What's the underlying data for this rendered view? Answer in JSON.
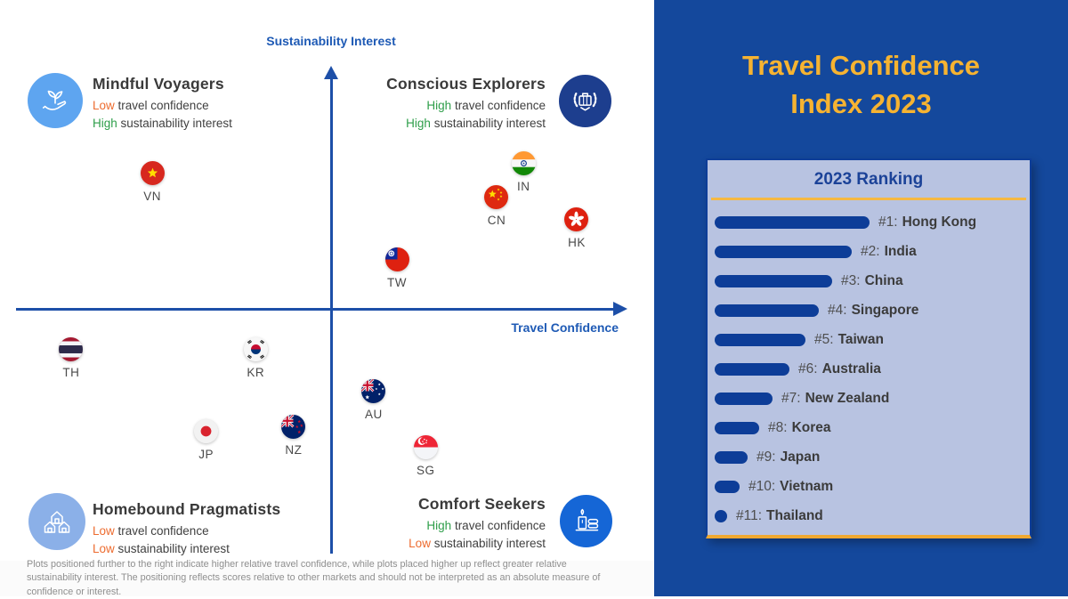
{
  "title": {
    "line1": "Travel Confidence",
    "line2": "Index 2023",
    "color": "#F6B331"
  },
  "chart": {
    "y_axis_label": "Sustainability Interest",
    "x_axis_label": "Travel Confidence",
    "axis_color": "#1D4FA8",
    "level_colors": {
      "low": "#ED6C30",
      "high": "#2E9E4A"
    },
    "quadrants": [
      {
        "id": "mindful-voyagers",
        "position": "top-left",
        "icon": "hand-plant-icon",
        "title": "Mindful Voyagers",
        "lines": [
          {
            "prefix": "Low",
            "rest": " travel confidence",
            "level": "low"
          },
          {
            "prefix": "High",
            "rest": " sustainability interest",
            "level": "high"
          }
        ]
      },
      {
        "id": "conscious-explorers",
        "position": "top-right",
        "icon": "badge-suitcase-icon",
        "title": "Conscious Explorers",
        "lines": [
          {
            "prefix": "High",
            "rest": " travel confidence",
            "level": "high"
          },
          {
            "prefix": "High",
            "rest": " sustainability interest",
            "level": "high"
          }
        ]
      },
      {
        "id": "homebound-pragmatists",
        "position": "bottom-left",
        "icon": "houses-icon",
        "title": "Homebound Pragmatists",
        "lines": [
          {
            "prefix": "Low",
            "rest": " travel confidence",
            "level": "low"
          },
          {
            "prefix": "Low",
            "rest": " sustainability interest",
            "level": "low"
          }
        ]
      },
      {
        "id": "comfort-seekers",
        "position": "bottom-right",
        "icon": "candle-spa-icon",
        "title": "Comfort Seekers",
        "lines": [
          {
            "prefix": "High",
            "rest": " travel confidence",
            "level": "high"
          },
          {
            "prefix": "Low",
            "rest": " sustainability interest",
            "level": "low"
          }
        ]
      }
    ]
  },
  "chart_data": {
    "type": "scatter",
    "title": "Travel Confidence Index 2023 quadrant map",
    "xlabel": "Travel Confidence",
    "ylabel": "Sustainability Interest",
    "note": "Positions are relative to other markets; no numeric axis scale is shown. x_pct: 0=far left, 100=far right; y_pct: 0=bottom, 100=top. Axis cross at x_pct 51.5, y_pct 50.3.",
    "points": [
      {
        "code": "VN",
        "label": "VN",
        "x_pct": 22.3,
        "y_pct": 78.1
      },
      {
        "code": "IN",
        "label": "IN",
        "x_pct": 83.0,
        "y_pct": 80.1
      },
      {
        "code": "CN",
        "label": "CN",
        "x_pct": 78.6,
        "y_pct": 73.1
      },
      {
        "code": "HK",
        "label": "HK",
        "x_pct": 91.7,
        "y_pct": 68.6
      },
      {
        "code": "TW",
        "label": "TW",
        "x_pct": 62.3,
        "y_pct": 60.3
      },
      {
        "code": "TH",
        "label": "TH",
        "x_pct": 9.0,
        "y_pct": 41.9
      },
      {
        "code": "KR",
        "label": "KR",
        "x_pct": 39.2,
        "y_pct": 41.9
      },
      {
        "code": "AU",
        "label": "AU",
        "x_pct": 58.5,
        "y_pct": 33.3
      },
      {
        "code": "NZ",
        "label": "NZ",
        "x_pct": 45.4,
        "y_pct": 26.0
      },
      {
        "code": "JP",
        "label": "JP",
        "x_pct": 31.1,
        "y_pct": 25.0
      },
      {
        "code": "SG",
        "label": "SG",
        "x_pct": 67.0,
        "y_pct": 21.8
      }
    ]
  },
  "ranking": {
    "title": "2023 Ranking",
    "bar_color": "#0D3D98",
    "items": [
      {
        "rank": "#1:",
        "country": "Hong Kong",
        "bar": 174
      },
      {
        "rank": "#2:",
        "country": "India",
        "bar": 154
      },
      {
        "rank": "#3:",
        "country": "China",
        "bar": 132
      },
      {
        "rank": "#4:",
        "country": "Singapore",
        "bar": 117
      },
      {
        "rank": "#5:",
        "country": "Taiwan",
        "bar": 102
      },
      {
        "rank": "#6:",
        "country": "Australia",
        "bar": 84
      },
      {
        "rank": "#7:",
        "country": "New Zealand",
        "bar": 65
      },
      {
        "rank": "#8:",
        "country": "Korea",
        "bar": 50
      },
      {
        "rank": "#9:",
        "country": "Japan",
        "bar": 37
      },
      {
        "rank": "#10:",
        "country": "Vietnam",
        "bar": 28
      },
      {
        "rank": "#11:",
        "country": "Thailand",
        "bar": 14
      }
    ]
  },
  "footnote": "Plots positioned further to the right indicate higher relative travel confidence, while plots placed higher up reflect greater relative sustainability interest. The positioning reflects scores relative to other markets and should not be interpreted as an absolute measure of confidence or interest."
}
